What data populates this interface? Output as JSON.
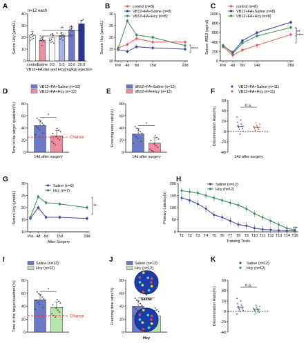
{
  "figure": {
    "hcy_label": "Hcy",
    "saline_label": "Saline",
    "chance_label": "Chance"
  },
  "chart_data": [
    {
      "panel": "A",
      "type": "bar",
      "annotation": "n=12 each",
      "categories": [
        "control",
        "Saline",
        "0.5",
        "5.0",
        "10.0",
        "20.0"
      ],
      "values": [
        22,
        17.5,
        19.5,
        21.5,
        26,
        31.5
      ],
      "colors": [
        "#ffffff",
        "#f28b9b",
        "#ffffff",
        "#a9b4e6",
        "#6c79c9",
        "#2b3595"
      ],
      "xlabel": "VB12+FA diet and Hcy(mg/kg) injection",
      "ylabel": "Serum Hcy (μmol/L)",
      "ylim": [
        0,
        40
      ],
      "yticks": [
        0,
        10,
        20,
        30,
        40
      ],
      "sig": [
        "*",
        "**"
      ]
    },
    {
      "panel": "B",
      "type": "line",
      "x": [
        "Pre",
        "4d",
        "8d",
        "15d",
        "29d"
      ],
      "xdays": [
        0,
        4,
        8,
        15,
        29
      ],
      "ylabel": "Serum Hcy (μmol/L)",
      "ylim": [
        10,
        30
      ],
      "yticks": [
        10,
        15,
        20,
        25,
        30
      ],
      "series": [
        {
          "name": "control (n=8)",
          "color": "#e8555f",
          "values": [
            15.5,
            17,
            19.5,
            18,
            18
          ]
        },
        {
          "name": "VB12+FA+Saline (n=8)",
          "color": "#3a3fa0",
          "values": [
            14.8,
            14,
            16,
            15.5,
            15
          ]
        },
        {
          "name": "VB12+FA+Hcy (n=8)",
          "color": "#2e8b57",
          "values": [
            15.2,
            27,
            21,
            20,
            16.5
          ]
        }
      ],
      "sig": "****"
    },
    {
      "panel": "C",
      "type": "line",
      "x": [
        "Pre",
        "4d",
        "8d",
        "14d",
        "28d"
      ],
      "xdays": [
        0,
        4,
        8,
        14,
        28
      ],
      "ylabel": "Serum VB12 (pg/ml)",
      "ylim": [
        0,
        1000
      ],
      "yticks": [
        0,
        200,
        400,
        600,
        800,
        1000
      ],
      "series": [
        {
          "name": "control (n=8)",
          "color": "#e8555f",
          "values": [
            300,
            120,
            230,
            330,
            560
          ]
        },
        {
          "name": "VB12+FA+Saline (n=8)",
          "color": "#3a3fa0",
          "values": [
            320,
            180,
            430,
            600,
            820
          ]
        },
        {
          "name": "VB12+FA+Hcy (n=8)",
          "color": "#2e8b57",
          "values": [
            330,
            160,
            380,
            530,
            710
          ]
        }
      ],
      "sig": [
        "**",
        "****"
      ]
    },
    {
      "panel": "D",
      "type": "bar",
      "series": [
        {
          "name": "VB12+FA+Saline (n=12)",
          "color": "#6c79c9",
          "values": [
            44
          ]
        },
        {
          "name": "VB12+FA+Hcy (n=12)",
          "color": "#f28b9b",
          "values": [
            27
          ]
        }
      ],
      "xlabel": "14d after surgery",
      "ylabel": "Time in the target quadrant(%)",
      "ylim": [
        0,
        80
      ],
      "yticks": [
        0,
        20,
        40,
        60,
        80
      ],
      "chance": 25,
      "sig": "*"
    },
    {
      "panel": "E",
      "type": "bar",
      "series": [
        {
          "name": "VB12+FA+Saline (n=12)",
          "color": "#6c79c9",
          "values": [
            30
          ]
        },
        {
          "name": "VB12+FA+Hcy (n=12)",
          "color": "#f28b9b",
          "values": [
            15
          ]
        }
      ],
      "xlabel": "14d after surgery",
      "ylabel": "Freezing time ratio(%)",
      "ylim": [
        0,
        80
      ],
      "yticks": [
        0,
        20,
        40,
        60,
        80
      ],
      "sig": "*"
    },
    {
      "panel": "F",
      "type": "scatter",
      "series": [
        {
          "name": "VB12+FA+Saline (n=11)",
          "color": "#3a3fa0",
          "mean": 10,
          "values": [
            28,
            22,
            18,
            14,
            12,
            10,
            8,
            6,
            4,
            0,
            -5
          ]
        },
        {
          "name": "VB12+FA+Hcy (n=11)",
          "color": "#e8555f",
          "mean": 8,
          "values": [
            18,
            14,
            12,
            10,
            9,
            8,
            7,
            5,
            4,
            2,
            0
          ]
        }
      ],
      "xlabel": "14d after surgery",
      "ylabel": "Discrimination Ratio(%)",
      "ylim": [
        -40,
        60
      ],
      "yticks": [
        -40,
        -20,
        0,
        20,
        40,
        60
      ],
      "sig": "n.s."
    },
    {
      "panel": "G",
      "type": "line",
      "x": [
        "Pre",
        "4d",
        "8d",
        "15d",
        "29d"
      ],
      "xdays": [
        0,
        4,
        8,
        15,
        29
      ],
      "xlabel": "After Surgery",
      "ylabel": "Serum Hcy (μmol/L)",
      "ylim": [
        10,
        30
      ],
      "yticks": [
        10,
        15,
        20,
        25,
        30
      ],
      "series": [
        {
          "name": "Saline (n=8)",
          "color": "#3a3fa0",
          "values": [
            15.5,
            20,
            16,
            16,
            15.5
          ]
        },
        {
          "name": "Hcy (n=7)",
          "color": "#2e8b57",
          "values": [
            16,
            24.5,
            22,
            21.5,
            20
          ]
        }
      ],
      "sig": [
        "**",
        "*"
      ]
    },
    {
      "panel": "H",
      "type": "line",
      "x": [
        "T1",
        "T2",
        "T3",
        "T4",
        "T5",
        "T6",
        "T7",
        "T8",
        "T9",
        "T10",
        "T11",
        "T12",
        "T13",
        "T14",
        "T15"
      ],
      "xlabel": "Training Trials",
      "ylabel": "Primary Latency(s)",
      "ylim": [
        0,
        200
      ],
      "yticks": [
        0,
        50,
        100,
        150,
        200
      ],
      "series": [
        {
          "name": "Saline (n=12)",
          "color": "#3a3fa0",
          "values": [
            140,
            130,
            115,
            95,
            70,
            60,
            45,
            30,
            25,
            15,
            10,
            8,
            6,
            5,
            4
          ]
        },
        {
          "name": "Hcy (n=12)",
          "color": "#2e8b57",
          "values": [
            170,
            165,
            160,
            150,
            140,
            130,
            120,
            110,
            95,
            75,
            60,
            45,
            30,
            15,
            8
          ]
        }
      ],
      "sig": "***"
    },
    {
      "panel": "I",
      "type": "bar",
      "series": [
        {
          "name": "Saline (n=12)",
          "color": "#6c79c9",
          "values": [
            50
          ]
        },
        {
          "name": "Hcy (n=12)",
          "color": "#b7e4a8",
          "values": [
            38
          ]
        }
      ],
      "ylabel": "Time in the target quadrant(%)",
      "ylim": [
        0,
        80
      ],
      "yticks": [
        0,
        20,
        40,
        60,
        80
      ],
      "chance": 25,
      "sig": "*"
    },
    {
      "panel": "J",
      "type": "bar",
      "series": [
        {
          "name": "Saline (n=12)",
          "color": "#6c79c9",
          "values": [
            40
          ]
        },
        {
          "name": "Hcy (n=12)",
          "color": "#b7e4a8",
          "values": [
            25
          ]
        }
      ],
      "ylabel": "Freezing time ratio(%)",
      "ylim": [
        0,
        80
      ],
      "yticks": [
        0,
        20,
        40,
        60,
        80
      ],
      "sig": "*"
    },
    {
      "panel": "K",
      "type": "scatter",
      "series": [
        {
          "name": "Saline (n=12)",
          "color": "#3a3fa0",
          "mean": 8,
          "values": [
            25,
            20,
            15,
            12,
            10,
            8,
            6,
            5,
            3,
            2,
            0,
            -5
          ]
        },
        {
          "name": "Hcy (n=12)",
          "color": "#2e8b57",
          "mean": 4,
          "values": [
            12,
            10,
            8,
            6,
            5,
            4,
            3,
            2,
            1,
            0,
            -2,
            -3
          ]
        }
      ],
      "ylabel": "Discrimination Ratio(%)",
      "ylim": [
        -40,
        60
      ],
      "yticks": [
        -40,
        -20,
        0,
        20,
        40,
        60
      ],
      "sig": "n.s."
    }
  ]
}
